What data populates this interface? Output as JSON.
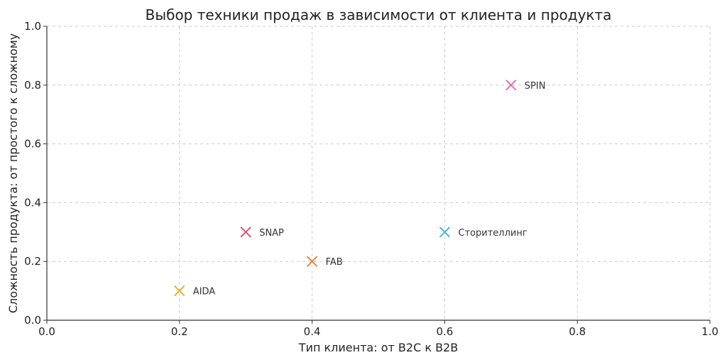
{
  "chart_data": {
    "type": "scatter",
    "title": "Выбор техники продаж в зависимости от клиента и продукта",
    "xlabel": "Тип клиента: от B2C к B2B",
    "ylabel": "Сложность продукта: от простого к сложному",
    "xlim": [
      0,
      1
    ],
    "ylim": [
      0,
      1
    ],
    "x_ticks": [
      0.0,
      0.2,
      0.4,
      0.6,
      0.8,
      1.0
    ],
    "y_ticks": [
      0.0,
      0.2,
      0.4,
      0.6,
      0.8,
      1.0
    ],
    "x_tick_labels": [
      "0.0",
      "0.2",
      "0.4",
      "0.6",
      "0.8",
      "1.0"
    ],
    "y_tick_labels": [
      "0.0",
      "0.2",
      "0.4",
      "0.6",
      "0.8",
      "1.0"
    ],
    "grid": true,
    "marker": "x",
    "points": [
      {
        "label": "AIDA",
        "x": 0.2,
        "y": 0.1,
        "color": "#e6b33a"
      },
      {
        "label": "SNAP",
        "x": 0.3,
        "y": 0.3,
        "color": "#d9536f"
      },
      {
        "label": "FAB",
        "x": 0.4,
        "y": 0.2,
        "color": "#e8823f"
      },
      {
        "label": "Сторителлинг",
        "x": 0.6,
        "y": 0.3,
        "color": "#4bb6d9"
      },
      {
        "label": "SPIN",
        "x": 0.7,
        "y": 0.8,
        "color": "#e06fc1"
      }
    ]
  }
}
